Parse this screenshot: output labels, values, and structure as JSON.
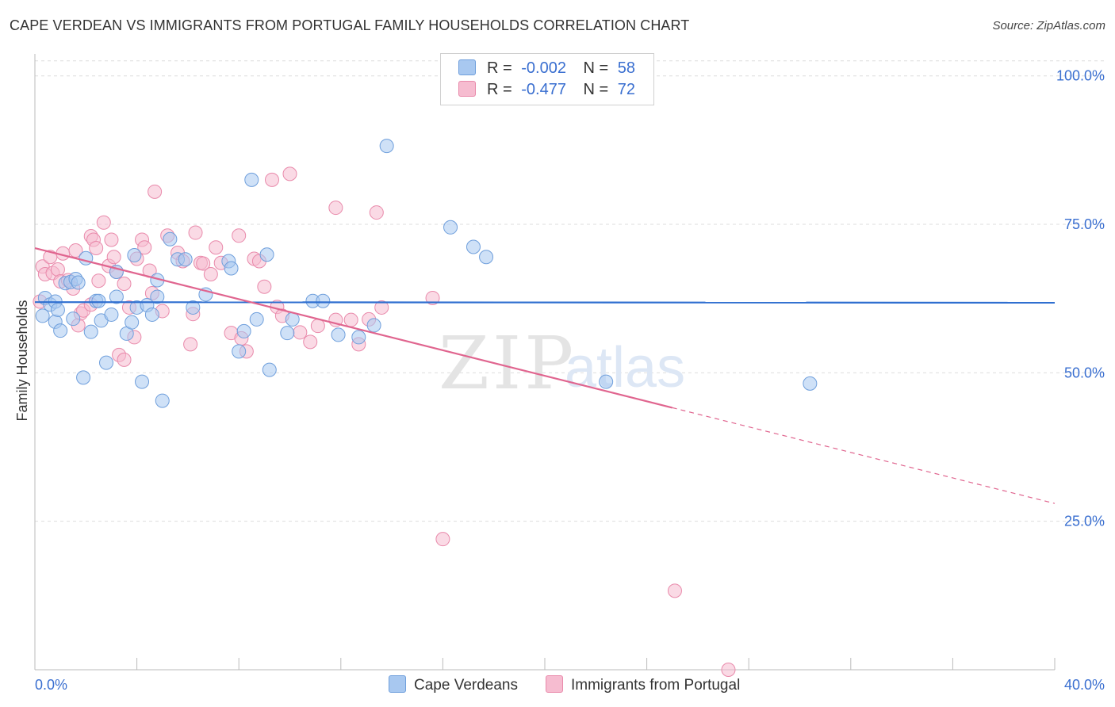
{
  "title": "CAPE VERDEAN VS IMMIGRANTS FROM PORTUGAL FAMILY HOUSEHOLDS CORRELATION CHART",
  "source": "Source: ZipAtlas.com",
  "watermark": {
    "zip": "ZIP",
    "atlas": "atlas"
  },
  "legend": {
    "rows": [
      {
        "r_label": "R =",
        "r_value": "-0.002",
        "n_label": "N =",
        "n_value": "58"
      },
      {
        "r_label": "R =",
        "r_value": "-0.477",
        "n_label": "N =",
        "n_value": "72"
      }
    ]
  },
  "bottom_legend": [
    "Cape Verdeans",
    "Immigrants from Portugal"
  ],
  "colors": {
    "blue_fill": "#a8c8f0",
    "blue_stroke": "#6f9fdc",
    "blue_line": "#2f6fd0",
    "pink_fill": "#f6bcd0",
    "pink_stroke": "#e98aab",
    "pink_line": "#e0658f",
    "axis_label": "#3a6fd0"
  },
  "chart_data": {
    "type": "scatter",
    "title": "CAPE VERDEAN VS IMMIGRANTS FROM PORTUGAL FAMILY HOUSEHOLDS CORRELATION CHART",
    "xlabel": "",
    "ylabel": "Family Households",
    "xlim": [
      0,
      40
    ],
    "ylim": [
      0,
      102.5
    ],
    "x_tick_labels": [
      "0.0%",
      "40.0%"
    ],
    "y_ticks": [
      25,
      50,
      75,
      100
    ],
    "y_tick_labels": [
      "25.0%",
      "50.0%",
      "75.0%",
      "100.0%"
    ],
    "grid": true,
    "series": [
      {
        "name": "Cape Verdeans",
        "R": -0.002,
        "N": 58,
        "trend": {
          "x0": 0,
          "y0": 61.9,
          "x1": 40,
          "y1": 61.8,
          "dashed_from": null
        },
        "points": [
          [
            0.3,
            59.6
          ],
          [
            0.4,
            62.6
          ],
          [
            0.6,
            61.5
          ],
          [
            0.8,
            62.0
          ],
          [
            0.8,
            58.6
          ],
          [
            0.9,
            60.6
          ],
          [
            1.0,
            57.1
          ],
          [
            1.2,
            65.1
          ],
          [
            1.4,
            65.3
          ],
          [
            1.5,
            59.1
          ],
          [
            1.6,
            65.8
          ],
          [
            1.7,
            65.2
          ],
          [
            1.9,
            49.2
          ],
          [
            2.0,
            69.3
          ],
          [
            2.2,
            56.9
          ],
          [
            2.4,
            62.1
          ],
          [
            2.5,
            62.1
          ],
          [
            2.6,
            58.8
          ],
          [
            2.8,
            51.7
          ],
          [
            3.0,
            59.8
          ],
          [
            3.2,
            62.8
          ],
          [
            3.2,
            67.0
          ],
          [
            3.6,
            56.6
          ],
          [
            3.8,
            58.5
          ],
          [
            3.9,
            69.8
          ],
          [
            4.0,
            61.0
          ],
          [
            4.2,
            48.5
          ],
          [
            4.4,
            61.4
          ],
          [
            4.6,
            59.8
          ],
          [
            4.8,
            62.8
          ],
          [
            4.8,
            65.6
          ],
          [
            5.0,
            45.3
          ],
          [
            5.3,
            72.5
          ],
          [
            5.6,
            69.1
          ],
          [
            5.9,
            69.1
          ],
          [
            6.2,
            61.0
          ],
          [
            6.7,
            63.2
          ],
          [
            7.6,
            68.8
          ],
          [
            7.7,
            67.6
          ],
          [
            8.0,
            53.6
          ],
          [
            8.2,
            57.0
          ],
          [
            8.5,
            82.5
          ],
          [
            8.7,
            59.0
          ],
          [
            9.1,
            69.9
          ],
          [
            9.2,
            50.5
          ],
          [
            9.9,
            56.7
          ],
          [
            10.1,
            59.0
          ],
          [
            10.9,
            62.1
          ],
          [
            11.3,
            62.1
          ],
          [
            11.9,
            56.4
          ],
          [
            12.7,
            56.0
          ],
          [
            13.3,
            58.0
          ],
          [
            13.8,
            88.2
          ],
          [
            16.3,
            74.5
          ],
          [
            17.2,
            71.2
          ],
          [
            17.7,
            69.5
          ],
          [
            22.4,
            48.5
          ],
          [
            30.4,
            48.2
          ]
        ]
      },
      {
        "name": "Immigrants from Portugal",
        "R": -0.477,
        "N": 72,
        "trend": {
          "x0": 0,
          "y0": 71.0,
          "x1": 40,
          "y1": 28.0,
          "dashed_from": 25.0
        },
        "points": [
          [
            0.2,
            62.0
          ],
          [
            0.3,
            67.9
          ],
          [
            0.4,
            66.6
          ],
          [
            0.6,
            69.5
          ],
          [
            0.7,
            66.8
          ],
          [
            0.9,
            67.4
          ],
          [
            1.0,
            65.4
          ],
          [
            1.1,
            70.1
          ],
          [
            1.3,
            65.6
          ],
          [
            1.5,
            64.2
          ],
          [
            1.6,
            70.6
          ],
          [
            1.7,
            58.0
          ],
          [
            1.8,
            60.0
          ],
          [
            1.9,
            60.5
          ],
          [
            2.2,
            61.5
          ],
          [
            2.2,
            73.0
          ],
          [
            2.3,
            72.4
          ],
          [
            2.4,
            71.0
          ],
          [
            2.5,
            65.5
          ],
          [
            2.7,
            75.3
          ],
          [
            2.9,
            68.0
          ],
          [
            3.0,
            72.4
          ],
          [
            3.1,
            69.5
          ],
          [
            3.2,
            67.0
          ],
          [
            3.3,
            53.0
          ],
          [
            3.5,
            52.2
          ],
          [
            3.5,
            65.0
          ],
          [
            3.7,
            61.0
          ],
          [
            3.9,
            56.0
          ],
          [
            4.0,
            69.2
          ],
          [
            4.2,
            72.4
          ],
          [
            4.3,
            71.1
          ],
          [
            4.5,
            67.2
          ],
          [
            4.6,
            63.4
          ],
          [
            4.7,
            80.5
          ],
          [
            5.0,
            60.4
          ],
          [
            5.2,
            73.1
          ],
          [
            5.6,
            70.2
          ],
          [
            5.8,
            68.8
          ],
          [
            6.1,
            54.8
          ],
          [
            6.2,
            59.9
          ],
          [
            6.3,
            73.6
          ],
          [
            6.5,
            68.5
          ],
          [
            6.6,
            68.4
          ],
          [
            6.9,
            66.6
          ],
          [
            7.1,
            71.1
          ],
          [
            7.3,
            68.5
          ],
          [
            7.7,
            56.7
          ],
          [
            8.0,
            73.1
          ],
          [
            8.1,
            55.8
          ],
          [
            8.3,
            53.6
          ],
          [
            8.6,
            69.2
          ],
          [
            8.8,
            68.8
          ],
          [
            9.0,
            64.5
          ],
          [
            9.3,
            82.5
          ],
          [
            9.5,
            61.1
          ],
          [
            9.7,
            59.6
          ],
          [
            10.0,
            83.5
          ],
          [
            10.4,
            56.8
          ],
          [
            10.8,
            55.2
          ],
          [
            11.1,
            57.9
          ],
          [
            11.8,
            77.8
          ],
          [
            11.8,
            58.9
          ],
          [
            12.4,
            58.9
          ],
          [
            12.7,
            54.8
          ],
          [
            13.1,
            59.0
          ],
          [
            13.4,
            77.0
          ],
          [
            13.6,
            61.0
          ],
          [
            15.6,
            62.6
          ],
          [
            16.0,
            22.0
          ],
          [
            25.1,
            13.3
          ],
          [
            27.2,
            0.0
          ]
        ]
      }
    ]
  }
}
